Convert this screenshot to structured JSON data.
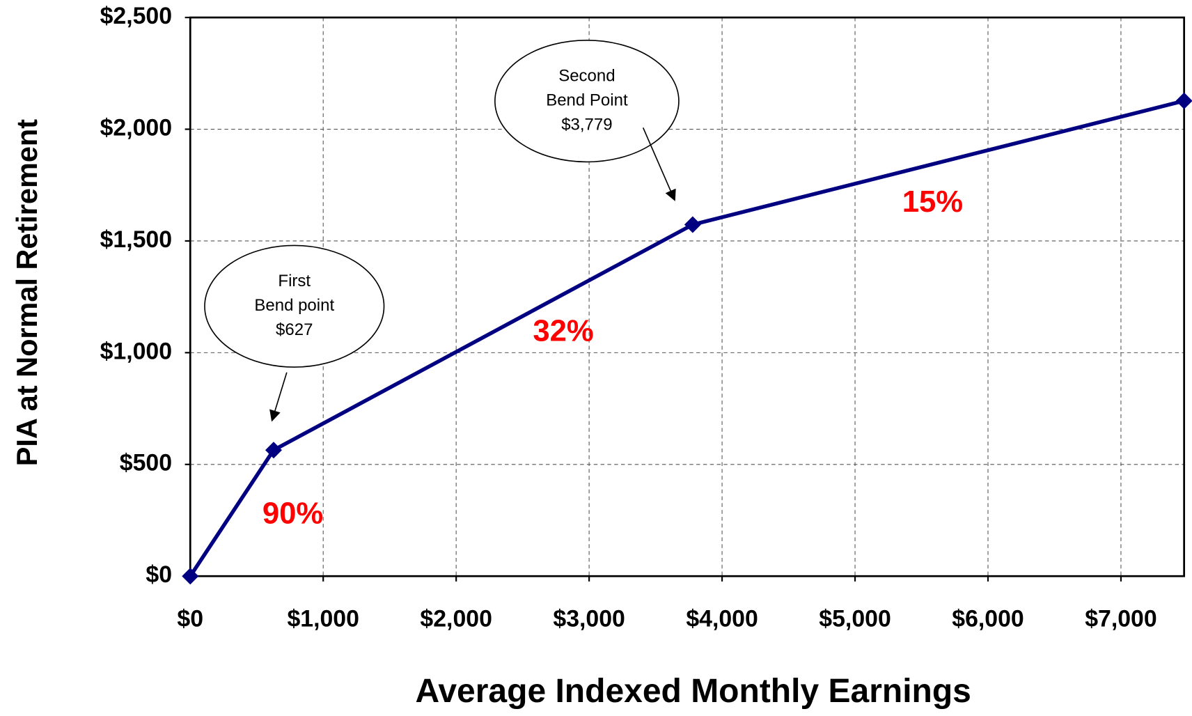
{
  "chart_data": {
    "type": "line",
    "x_label": "Average Indexed Monthly Earnings",
    "y_label": "PIA at Normal Retirement",
    "x": [
      0,
      627,
      3779,
      7475
    ],
    "series": [
      {
        "color": "#000080",
        "values": [
          0,
          564,
          1573,
          2127
        ]
      }
    ],
    "xlim": [
      0,
      7475
    ],
    "ylim": [
      0,
      2500
    ],
    "xticks": [
      {
        "value": 0,
        "label": "$0"
      },
      {
        "value": 1000,
        "label": "$1,000"
      },
      {
        "value": 2000,
        "label": "$2,000"
      },
      {
        "value": 3000,
        "label": "$3,000"
      },
      {
        "value": 4000,
        "label": "$4,000"
      },
      {
        "value": 5000,
        "label": "$5,000"
      },
      {
        "value": 6000,
        "label": "$6,000"
      },
      {
        "value": 7000,
        "label": "$7,000"
      }
    ],
    "yticks": [
      {
        "value": 0,
        "label": "$0"
      },
      {
        "value": 500,
        "label": "$500"
      },
      {
        "value": 1000,
        "label": "$1,000"
      },
      {
        "value": 1500,
        "label": "$1,500"
      },
      {
        "value": 2000,
        "label": "$2,000"
      },
      {
        "value": 2500,
        "label": "$2,500"
      }
    ],
    "grid": true,
    "callouts": [
      [
        "First",
        "Bend point",
        "$627"
      ],
      [
        "Second",
        "Bend Point",
        "$3,779"
      ]
    ],
    "annotations": [
      "90%",
      "32%",
      "15%"
    ]
  }
}
